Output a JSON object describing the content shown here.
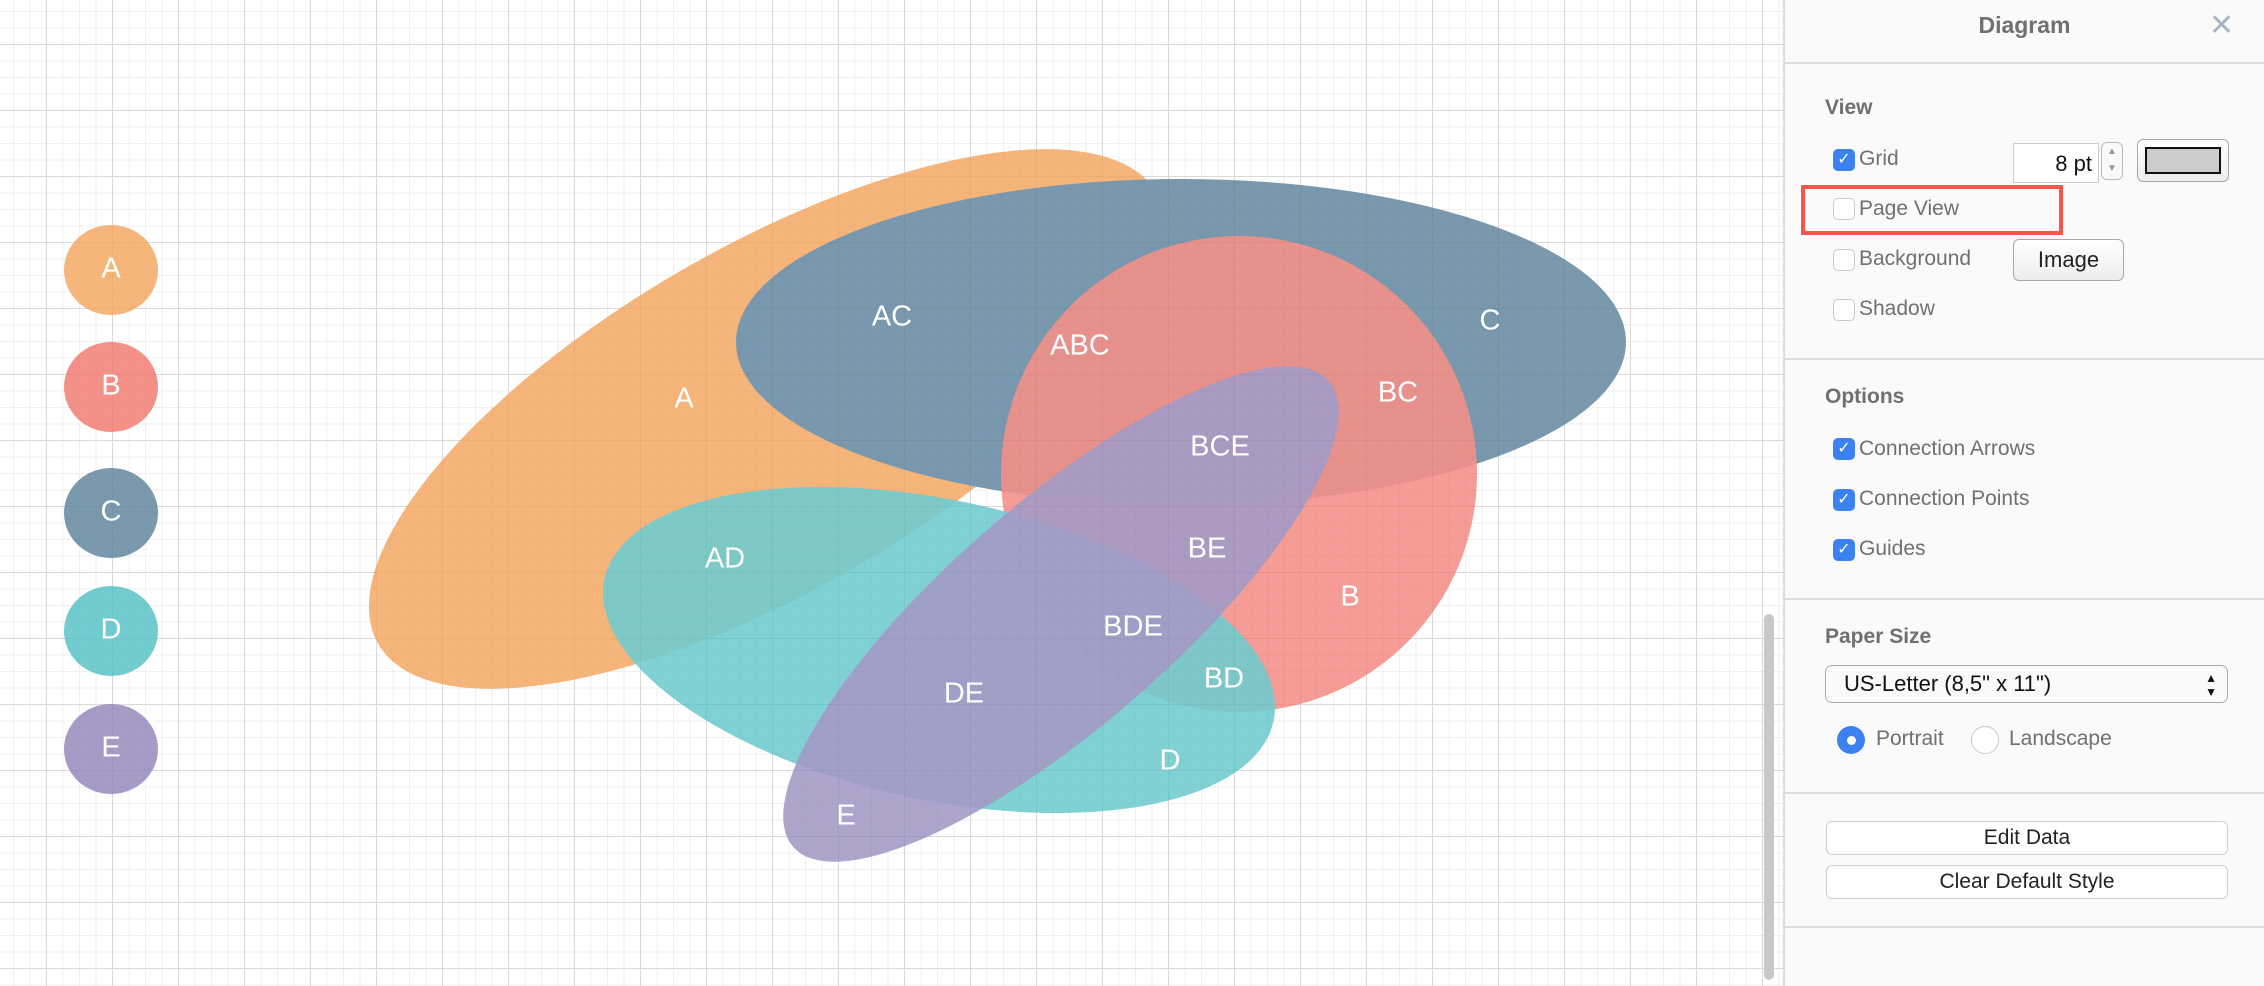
{
  "diagram": {
    "sets": [
      {
        "id": "A",
        "color": "#F2A25A"
      },
      {
        "id": "B",
        "color": "#F0756B"
      },
      {
        "id": "C",
        "color": "#5A7F99"
      },
      {
        "id": "D",
        "color": "#4FBFC3"
      },
      {
        "id": "E",
        "color": "#8E82B8"
      }
    ],
    "region_labels": [
      "A",
      "AC",
      "ABC",
      "C",
      "BC",
      "BCE",
      "AD",
      "BE",
      "B",
      "BDE",
      "BD",
      "DE",
      "D",
      "E"
    ],
    "legend": [
      "A",
      "B",
      "C",
      "D",
      "E"
    ]
  },
  "panel": {
    "title": "Diagram",
    "close_icon": "close-icon",
    "view": {
      "heading": "View",
      "grid": {
        "label": "Grid",
        "checked": true,
        "size": "8 pt",
        "color": "#cccccc"
      },
      "page_view": {
        "label": "Page View",
        "checked": false,
        "highlight_color": "#F5554A"
      },
      "background": {
        "label": "Background",
        "checked": false,
        "button": "Image"
      },
      "shadow": {
        "label": "Shadow",
        "checked": false
      }
    },
    "options": {
      "heading": "Options",
      "items": [
        {
          "label": "Connection Arrows",
          "checked": true
        },
        {
          "label": "Connection Points",
          "checked": true
        },
        {
          "label": "Guides",
          "checked": true
        }
      ]
    },
    "paper": {
      "heading": "Paper Size",
      "selected": "US-Letter (8,5\" x 11\")",
      "portrait": "Portrait",
      "landscape": "Landscape",
      "orientation": "Portrait"
    },
    "buttons": {
      "edit_data": "Edit Data",
      "clear_style": "Clear Default Style"
    }
  }
}
